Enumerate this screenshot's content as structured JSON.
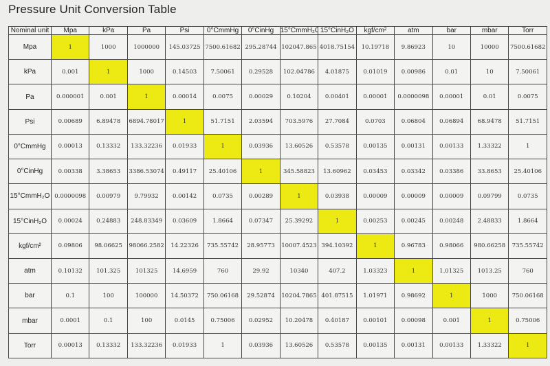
{
  "title": "Pressure Unit Conversion Table",
  "corner": "Nominal unit",
  "columns": [
    "Mpa",
    "kPa",
    "Pa",
    "Psi",
    "0°CmmHg",
    "0°CinHg",
    "15°CmmH₂O",
    "15°CinH₂O",
    "kgf/cm²",
    "atm",
    "bar",
    "mbar",
    "Torr"
  ],
  "rows": [
    {
      "unit": "Mpa",
      "values": [
        "1",
        "1000",
        "1000000",
        "145.03725",
        "7500.61682",
        "295.28744",
        "102047.865",
        "4018.75154",
        "10.19718",
        "9.86923",
        "10",
        "10000",
        "7500.61682"
      ]
    },
    {
      "unit": "kPa",
      "values": [
        "0.001",
        "1",
        "1000",
        "0.14503",
        "7.50061",
        "0.29528",
        "102.04786",
        "4.01875",
        "0.01019",
        "0.00986",
        "0.01",
        "10",
        "7.50061"
      ]
    },
    {
      "unit": "Pa",
      "values": [
        "0.000001",
        "0.001",
        "1",
        "0.00014",
        "0.0075",
        "0.00029",
        "0.10204",
        "0.00401",
        "0.00001",
        "0.0000098",
        "0.00001",
        "0.01",
        "0.0075"
      ]
    },
    {
      "unit": "Psi",
      "values": [
        "0.00689",
        "6.89478",
        "6894.78017",
        "1",
        "51.7151",
        "2.03594",
        "703.5976",
        "27.7084",
        "0.0703",
        "0.06804",
        "0.06894",
        "68.9478",
        "51.7151"
      ]
    },
    {
      "unit": "0°CmmHg",
      "values": [
        "0.00013",
        "0.13332",
        "133.32236",
        "0.01933",
        "1",
        "0.03936",
        "13.60526",
        "0.53578",
        "0.00135",
        "0.00131",
        "0.00133",
        "1.33322",
        "1"
      ]
    },
    {
      "unit": "0°CinHg",
      "values": [
        "0.00338",
        "3.38653",
        "3386.53074",
        "0.49117",
        "25.40106",
        "1",
        "345.58823",
        "13.60962",
        "0.03453",
        "0.03342",
        "0.03386",
        "33.8653",
        "25.40106"
      ]
    },
    {
      "unit": "15°CmmH₂O",
      "values": [
        "0.0000098",
        "0.00979",
        "9.79932",
        "0.00142",
        "0.0735",
        "0.00289",
        "1",
        "0.03938",
        "0.00009",
        "0.00009",
        "0.00009",
        "0.09799",
        "0.0735"
      ]
    },
    {
      "unit": "15°CinH₂O",
      "values": [
        "0.00024",
        "0.24883",
        "248.83349",
        "0.03609",
        "1.8664",
        "0.07347",
        "25.39292",
        "1",
        "0.00253",
        "0.00245",
        "0.00248",
        "2.48833",
        "1.8664"
      ]
    },
    {
      "unit": "kgf/cm²",
      "values": [
        "0.09806",
        "98.06625",
        "98066.2582",
        "14.22326",
        "735.55742",
        "28.95773",
        "10007.4523",
        "394.10392",
        "1",
        "0.96783",
        "0.98066",
        "980.66258",
        "735.55742"
      ]
    },
    {
      "unit": "atm",
      "values": [
        "0.10132",
        "101.325",
        "101325",
        "14.6959",
        "760",
        "29.92",
        "10340",
        "407.2",
        "1.03323",
        "1",
        "1.01325",
        "1013.25",
        "760"
      ]
    },
    {
      "unit": "bar",
      "values": [
        "0.1",
        "100",
        "100000",
        "14.50372",
        "750.06168",
        "29.52874",
        "10204.7865",
        "401.87515",
        "1.01971",
        "0.98692",
        "1",
        "1000",
        "750.06168"
      ]
    },
    {
      "unit": "mbar",
      "values": [
        "0.0001",
        "0.1",
        "100",
        "0.0145",
        "0.75006",
        "0.02952",
        "10.20478",
        "0.40187",
        "0.00101",
        "0.00098",
        "0.001",
        "1",
        "0.75006"
      ]
    },
    {
      "unit": "Torr",
      "values": [
        "0.00013",
        "0.13332",
        "133.32236",
        "0.01933",
        "1",
        "0.03936",
        "13.60526",
        "0.53578",
        "0.00135",
        "0.00131",
        "0.00133",
        "1.33322",
        "1"
      ]
    }
  ],
  "colors": {
    "highlight": "#ecea12"
  }
}
